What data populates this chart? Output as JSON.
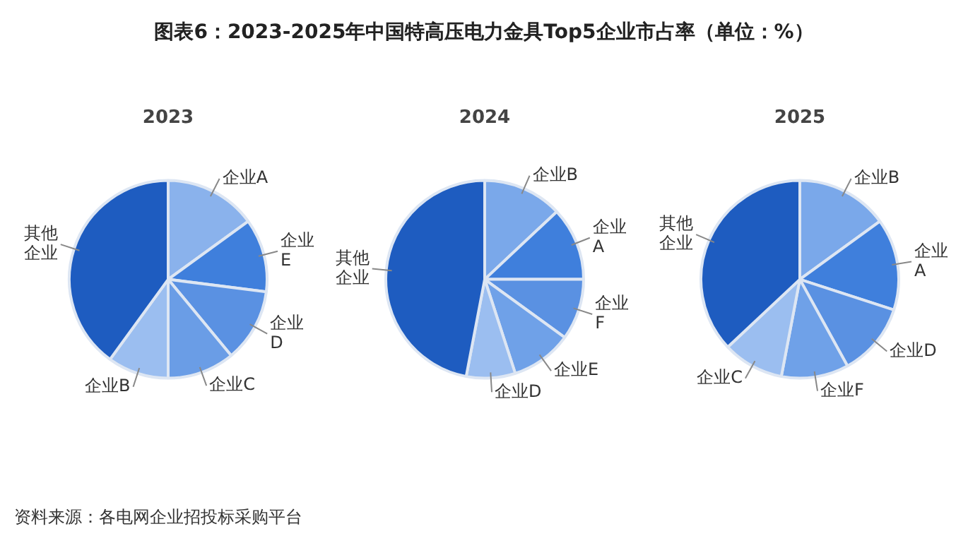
{
  "chart_data": [
    {
      "type": "other",
      "title": "图表6：2023-2025年中国特高压电力金具Top5企业市占率（单位：%）",
      "annotations": [
        "资料来源：各电网企业招投标采购平台"
      ]
    },
    {
      "type": "pie",
      "title": "2023",
      "categories": [
        "企业A",
        "企业E",
        "企业D",
        "企业C",
        "企业B",
        "其他企业"
      ],
      "values": [
        15,
        12,
        12,
        11,
        10,
        40
      ],
      "colors": [
        "#8ab2ec",
        "#3f7fdc",
        "#5a91e2",
        "#6a9de6",
        "#9bbef0",
        "#1e5cc0"
      ]
    },
    {
      "type": "pie",
      "title": "2024",
      "categories": [
        "企业B",
        "企业A",
        "企业F",
        "企业E",
        "企业D",
        "其他企业"
      ],
      "values": [
        13,
        12,
        10,
        10,
        8,
        47
      ],
      "colors": [
        "#7aa8ea",
        "#3f7fdc",
        "#5a91e2",
        "#6fa1e8",
        "#9bbef0",
        "#1e5cc0"
      ]
    },
    {
      "type": "pie",
      "title": "2025",
      "categories": [
        "企业B",
        "企业A",
        "企业D",
        "企业F",
        "企业C",
        "其他企业"
      ],
      "values": [
        15,
        15,
        12,
        11,
        10,
        37
      ],
      "colors": [
        "#7aa8ea",
        "#3f7fdc",
        "#5a91e2",
        "#6fa1e8",
        "#9bbef0",
        "#1e5cc0"
      ]
    }
  ]
}
